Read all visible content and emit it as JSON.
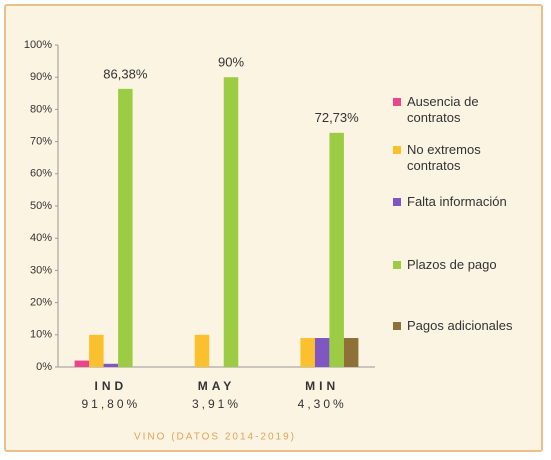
{
  "chart_data": {
    "type": "bar",
    "title": "VINO (DATOS 2014-2019)",
    "categories": [
      "IND",
      "MAY",
      "MIN"
    ],
    "category_sublabels": [
      "91,80%",
      "3,91%",
      "4,30%"
    ],
    "series": [
      {
        "name": "Ausencia de contratos",
        "color": "#e9468c",
        "values": [
          2,
          0,
          0
        ]
      },
      {
        "name": "No extremos contratos",
        "color": "#fbc02d",
        "values": [
          10,
          10,
          9
        ]
      },
      {
        "name": "Falta información",
        "color": "#7e57c2",
        "values": [
          1,
          0,
          9
        ]
      },
      {
        "name": "Plazos de pago",
        "color": "#9ccc43",
        "values": [
          86.38,
          90,
          72.73
        ],
        "value_labels": [
          "86,38%",
          "90%",
          "72,73%"
        ]
      },
      {
        "name": "Pagos adicionales",
        "color": "#8d7136",
        "values": [
          0,
          0,
          9
        ]
      }
    ],
    "ylim": [
      0,
      100
    ],
    "yticks": [
      {
        "value": 0,
        "label": "0%"
      },
      {
        "value": 10,
        "label": "10%"
      },
      {
        "value": 20,
        "label": "20%"
      },
      {
        "value": 30,
        "label": "30%"
      },
      {
        "value": 40,
        "label": "40%"
      },
      {
        "value": 50,
        "label": "50%"
      },
      {
        "value": 60,
        "label": "60%"
      },
      {
        "value": 70,
        "label": "70%"
      },
      {
        "value": 80,
        "label": "80%"
      },
      {
        "value": 90,
        "label": "90%"
      },
      {
        "value": 100,
        "label": "100%"
      }
    ],
    "grid": false
  }
}
